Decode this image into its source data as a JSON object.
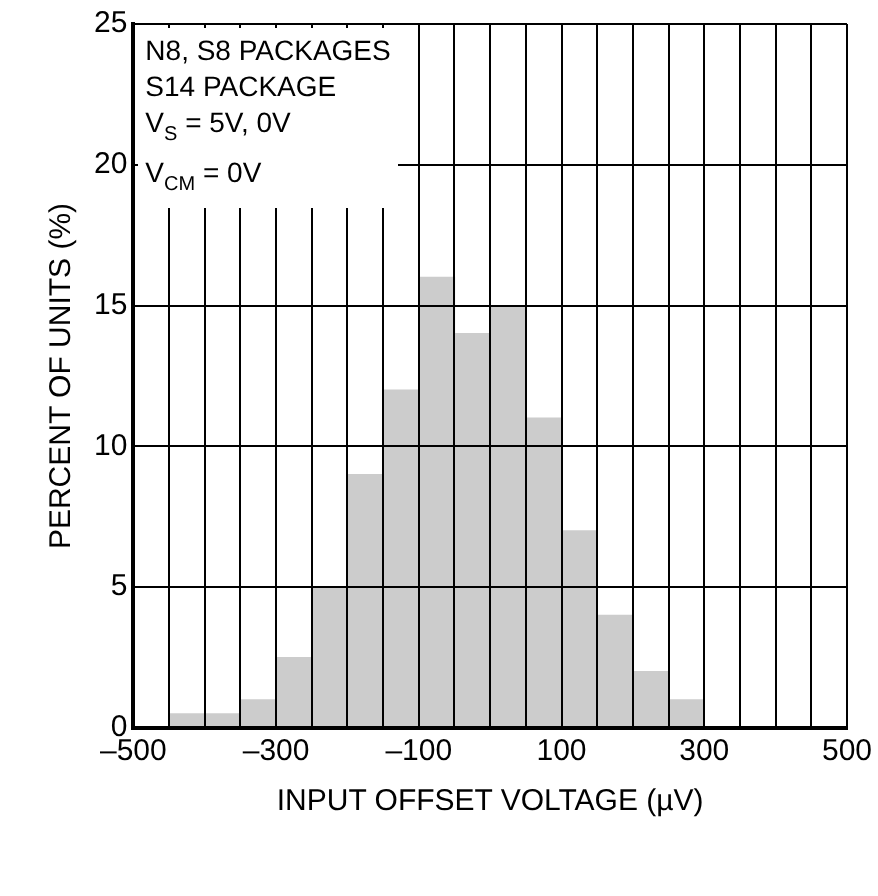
{
  "chart_data": {
    "type": "histogram",
    "xlabel": "INPUT OFFSET VOLTAGE (µV)",
    "ylabel": "PERCENT OF UNITS (%)",
    "bins": [
      -450,
      -400,
      -350,
      -300,
      -250,
      -200,
      -150,
      -100,
      -50,
      0,
      50,
      100,
      150,
      200,
      250,
      300
    ],
    "values": [
      0.5,
      0.5,
      1,
      2.5,
      5,
      9,
      12,
      16,
      14,
      15,
      11,
      7,
      4,
      2,
      1
    ],
    "color": "#cccccc",
    "xlim": [
      -500,
      500
    ],
    "xticks": [
      {
        "value": -500,
        "label": "–500"
      },
      {
        "value": -450,
        "label": null
      },
      {
        "value": -400,
        "label": null
      },
      {
        "value": -350,
        "label": null
      },
      {
        "value": -300,
        "label": "–300"
      },
      {
        "value": -250,
        "label": null
      },
      {
        "value": -200,
        "label": null
      },
      {
        "value": -150,
        "label": null
      },
      {
        "value": -100,
        "label": "–100"
      },
      {
        "value": -50,
        "label": null
      },
      {
        "value": 0,
        "label": null
      },
      {
        "value": 50,
        "label": null
      },
      {
        "value": 100,
        "label": "100"
      },
      {
        "value": 150,
        "label": null
      },
      {
        "value": 200,
        "label": null
      },
      {
        "value": 250,
        "label": null
      },
      {
        "value": 300,
        "label": "300"
      },
      {
        "value": 350,
        "label": null
      },
      {
        "value": 400,
        "label": null
      },
      {
        "value": 450,
        "label": null
      },
      {
        "value": 500,
        "label": "500"
      }
    ],
    "ylim": [
      0,
      25
    ],
    "yticks": [
      0,
      5,
      10,
      15,
      20,
      25
    ],
    "grid": true,
    "annotations": [
      "N8, S8 PACKAGES",
      "S14 PACKAGE",
      "V$_{S}$ = 5V, 0V",
      "V$_{CM}$ = 0V"
    ]
  }
}
